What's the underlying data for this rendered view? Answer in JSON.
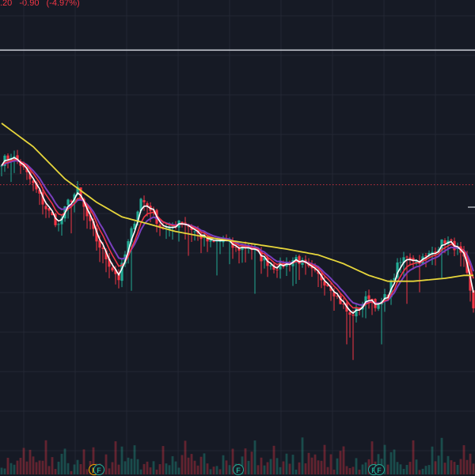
{
  "header": {
    "price_fragment": ".20",
    "change": "-0.90",
    "change_pct": "(-4.97%)",
    "change_color": "#f23645"
  },
  "colors": {
    "background": "#161a25",
    "grid": "#232734",
    "up": "#22ab94",
    "down": "#f23645",
    "ma_fast": "#ffffff",
    "ma_mid": "#f23645",
    "ma_slow": "#7b3fbf",
    "ma_long": "#e6d53b",
    "hline": "#d1d4dc",
    "ref_line": "#f23645"
  },
  "events": [
    {
      "label": "F",
      "style": "orange"
    },
    {
      "label": "F",
      "style": "green"
    },
    {
      "label": "F",
      "style": "green"
    },
    {
      "label": "F",
      "style": "green"
    },
    {
      "label": "F",
      "style": "green"
    }
  ],
  "chart_data": {
    "type": "candlestick",
    "x_points": 150,
    "price_anchors": [
      [
        0,
        0.8
      ],
      [
        3,
        0.82
      ],
      [
        6,
        0.79
      ],
      [
        10,
        0.72
      ],
      [
        14,
        0.64
      ],
      [
        18,
        0.58
      ],
      [
        21,
        0.66
      ],
      [
        24,
        0.7
      ],
      [
        27,
        0.61
      ],
      [
        30,
        0.53
      ],
      [
        34,
        0.45
      ],
      [
        37,
        0.4
      ],
      [
        39,
        0.48
      ],
      [
        42,
        0.6
      ],
      [
        44,
        0.67
      ],
      [
        47,
        0.64
      ],
      [
        50,
        0.58
      ],
      [
        53,
        0.56
      ],
      [
        56,
        0.6
      ],
      [
        59,
        0.58
      ],
      [
        62,
        0.55
      ],
      [
        66,
        0.52
      ],
      [
        70,
        0.53
      ],
      [
        74,
        0.5
      ],
      [
        78,
        0.51
      ],
      [
        82,
        0.47
      ],
      [
        86,
        0.44
      ],
      [
        90,
        0.45
      ],
      [
        93,
        0.47
      ],
      [
        97,
        0.43
      ],
      [
        101,
        0.4
      ],
      [
        104,
        0.37
      ],
      [
        107,
        0.32
      ],
      [
        110,
        0.27
      ],
      [
        113,
        0.3
      ],
      [
        116,
        0.34
      ],
      [
        119,
        0.3
      ],
      [
        122,
        0.35
      ],
      [
        125,
        0.44
      ],
      [
        128,
        0.48
      ],
      [
        131,
        0.46
      ],
      [
        134,
        0.47
      ],
      [
        137,
        0.5
      ],
      [
        140,
        0.53
      ],
      [
        143,
        0.51
      ],
      [
        146,
        0.46
      ],
      [
        148,
        0.35
      ],
      [
        150,
        0.25
      ]
    ],
    "long_ma_anchors": [
      [
        0,
        0.93
      ],
      [
        10,
        0.85
      ],
      [
        20,
        0.74
      ],
      [
        30,
        0.66
      ],
      [
        38,
        0.61
      ],
      [
        45,
        0.59
      ],
      [
        55,
        0.56
      ],
      [
        65,
        0.54
      ],
      [
        78,
        0.52
      ],
      [
        90,
        0.5
      ],
      [
        100,
        0.48
      ],
      [
        108,
        0.45
      ],
      [
        116,
        0.41
      ],
      [
        122,
        0.39
      ],
      [
        130,
        0.39
      ],
      [
        140,
        0.4
      ],
      [
        146,
        0.41
      ],
      [
        150,
        0.41
      ]
    ],
    "horizontal_line": 1.18,
    "reference_line": 0.72,
    "volume_levels": [
      0.2,
      0.35,
      0.5,
      0.25,
      0.6,
      0.3,
      0.45,
      0.8,
      0.3,
      0.55,
      0.4,
      0.7,
      0.35,
      0.5,
      0.9,
      0.45,
      0.6,
      0.3,
      0.5,
      0.75,
      1.0,
      0.4
    ]
  }
}
